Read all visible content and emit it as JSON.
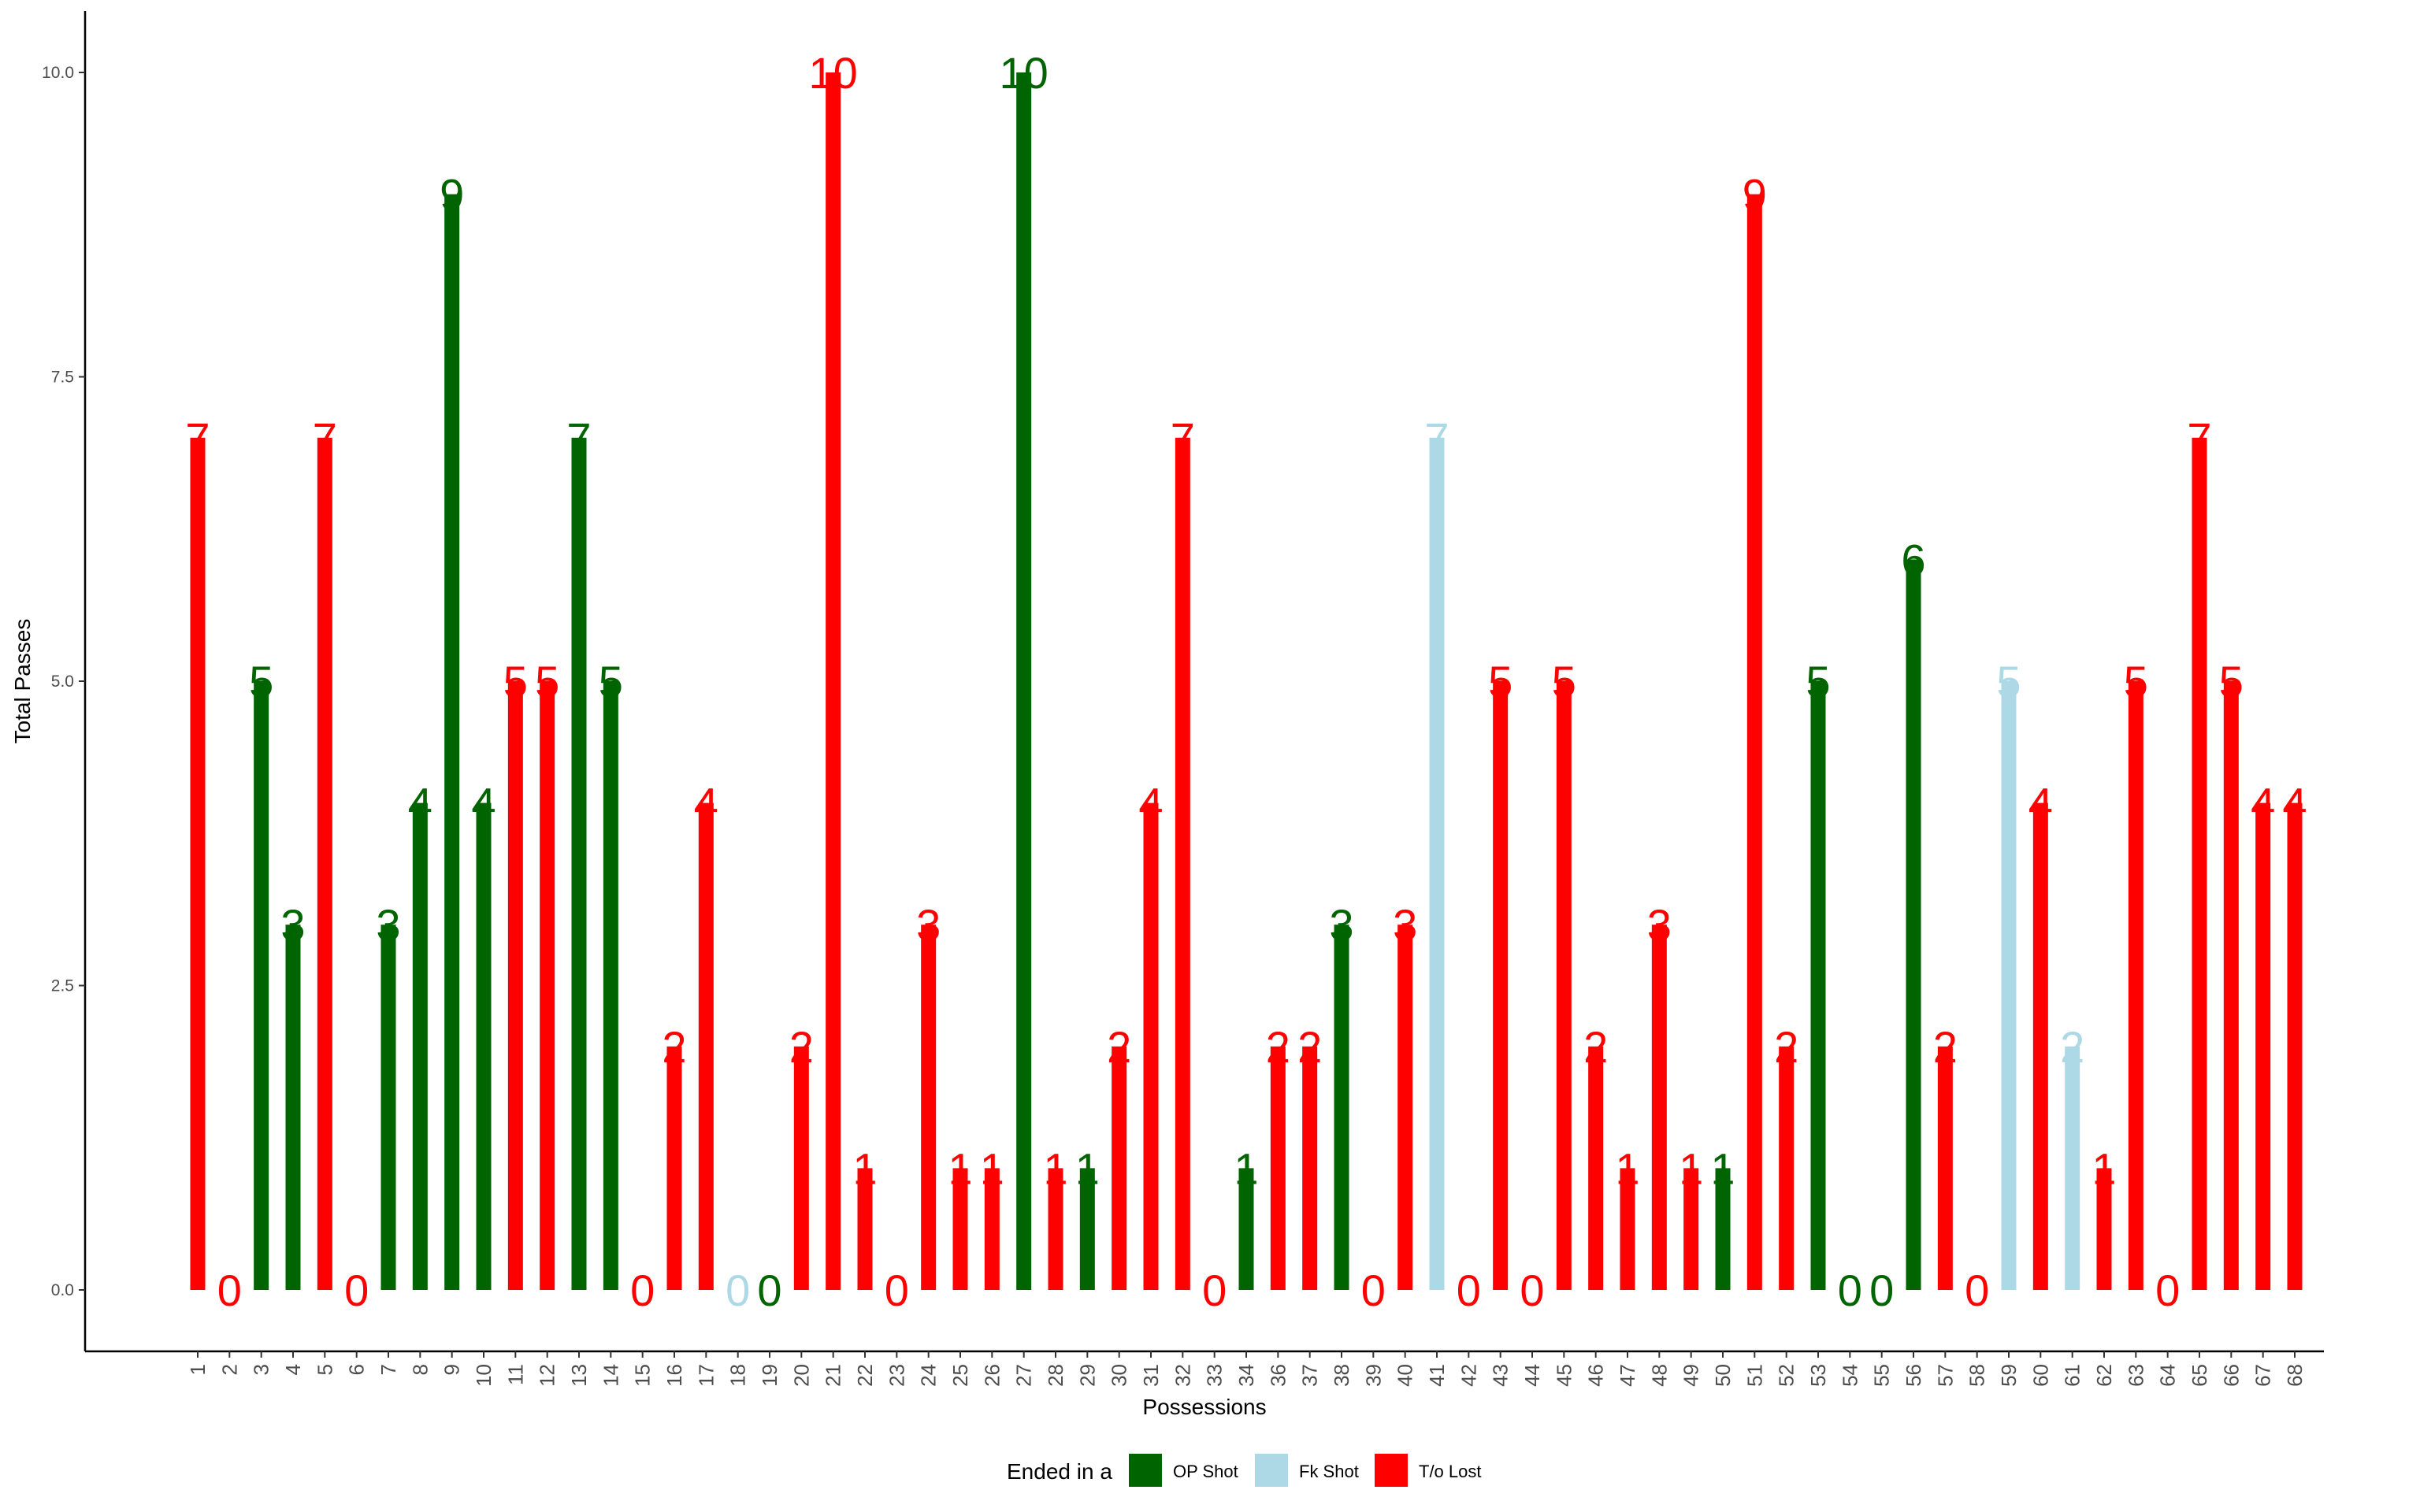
{
  "chart_data": {
    "type": "bar",
    "xlabel": "Possessions",
    "ylabel": "Total Passes",
    "ylim": [
      -0.45,
      10.5
    ],
    "yticks": [
      "0.0",
      "2.5",
      "5.0",
      "7.5",
      "10.0"
    ],
    "ytick_values": [
      0,
      2.5,
      5,
      7.5,
      10
    ],
    "grid": false,
    "legend": {
      "title": "Ended in a",
      "position": "bottom",
      "entries": [
        {
          "label": "OP Shot",
          "color": "#006400"
        },
        {
          "label": "Fk Shot",
          "color": "#ADD8E6"
        },
        {
          "label": "T/o Lost",
          "color": "#FF0000"
        }
      ]
    },
    "categories": [
      "1",
      "2",
      "3",
      "4",
      "5",
      "6",
      "7",
      "8",
      "9",
      "10",
      "11",
      "12",
      "13",
      "14",
      "15",
      "16",
      "17",
      "18",
      "19",
      "20",
      "21",
      "22",
      "23",
      "24",
      "25",
      "26",
      "27",
      "28",
      "29",
      "30",
      "31",
      "32",
      "33",
      "34",
      "36",
      "37",
      "38",
      "39",
      "40",
      "41",
      "42",
      "43",
      "44",
      "45",
      "46",
      "47",
      "48",
      "49",
      "50",
      "51",
      "52",
      "53",
      "54",
      "55",
      "56",
      "57",
      "58",
      "59",
      "60",
      "61",
      "62",
      "63",
      "64",
      "65",
      "66",
      "67",
      "68"
    ],
    "values": [
      7,
      0,
      5,
      3,
      7,
      0,
      3,
      4,
      9,
      4,
      5,
      5,
      7,
      5,
      0,
      2,
      4,
      0,
      0,
      2,
      10,
      1,
      0,
      3,
      1,
      1,
      10,
      1,
      1,
      2,
      4,
      7,
      0,
      1,
      2,
      2,
      3,
      0,
      3,
      7,
      0,
      5,
      0,
      5,
      2,
      1,
      3,
      1,
      1,
      9,
      2,
      5,
      0,
      0,
      6,
      2,
      0,
      5,
      4,
      2,
      1,
      5,
      0,
      7,
      5,
      4,
      4
    ],
    "outcome": [
      "T/o Lost",
      "T/o Lost",
      "OP Shot",
      "OP Shot",
      "T/o Lost",
      "T/o Lost",
      "OP Shot",
      "OP Shot",
      "OP Shot",
      "OP Shot",
      "T/o Lost",
      "T/o Lost",
      "OP Shot",
      "OP Shot",
      "T/o Lost",
      "T/o Lost",
      "T/o Lost",
      "Fk Shot",
      "OP Shot",
      "T/o Lost",
      "T/o Lost",
      "T/o Lost",
      "T/o Lost",
      "T/o Lost",
      "T/o Lost",
      "T/o Lost",
      "OP Shot",
      "T/o Lost",
      "OP Shot",
      "T/o Lost",
      "T/o Lost",
      "T/o Lost",
      "T/o Lost",
      "OP Shot",
      "T/o Lost",
      "T/o Lost",
      "OP Shot",
      "T/o Lost",
      "T/o Lost",
      "Fk Shot",
      "T/o Lost",
      "T/o Lost",
      "T/o Lost",
      "T/o Lost",
      "T/o Lost",
      "T/o Lost",
      "T/o Lost",
      "T/o Lost",
      "OP Shot",
      "T/o Lost",
      "T/o Lost",
      "OP Shot",
      "OP Shot",
      "OP Shot",
      "OP Shot",
      "T/o Lost",
      "T/o Lost",
      "Fk Shot",
      "T/o Lost",
      "Fk Shot",
      "T/o Lost",
      "T/o Lost",
      "T/o Lost",
      "T/o Lost",
      "T/o Lost",
      "T/o Lost",
      "T/o Lost"
    ]
  }
}
